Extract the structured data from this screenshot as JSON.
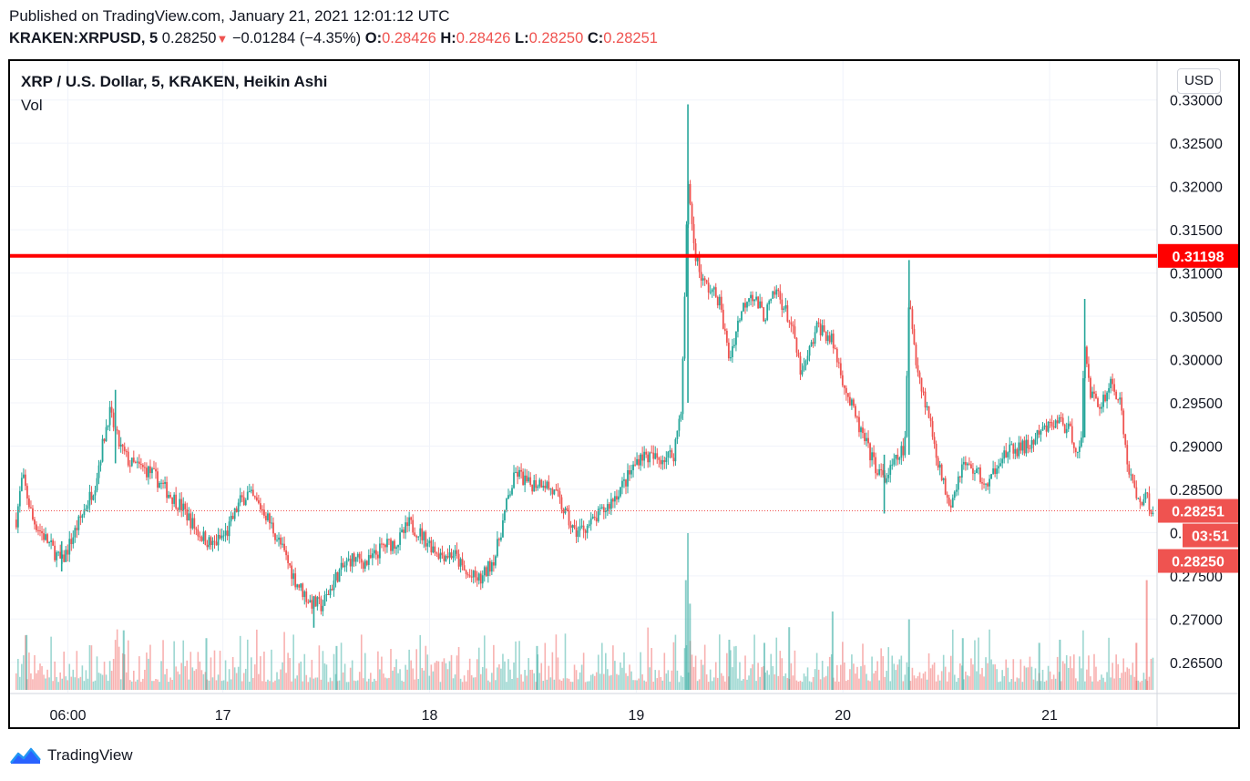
{
  "header": {
    "published": "Published on TradingView.com, January 21, 2021 12:01:12 UTC",
    "symbol": "KRAKEN:XRPUSD, 5",
    "last": "0.28250",
    "change_arrow": "▼",
    "change": "−0.01284 (−4.35%)",
    "o_label": "O:",
    "o_value": "0.28426",
    "h_label": "H:",
    "h_value": "0.28426",
    "l_label": "L:",
    "l_value": "0.28250",
    "c_label": "C:",
    "c_value": "0.28251"
  },
  "legend": {
    "title": "XRP / U.S. Dollar, 5, KRAKEN, Heikin Ashi",
    "volume": "Vol"
  },
  "currency_button": "USD",
  "footer": {
    "brand": "TradingView"
  },
  "colors": {
    "up": "#26a69a",
    "down": "#ef5350",
    "level": "#ff0000",
    "grid": "#f0f3fa"
  },
  "chart_data": {
    "type": "candlestick",
    "style": "Heikin Ashi",
    "title": "XRP / U.S. Dollar, 5, KRAKEN, Heikin Ashi",
    "y_ticks": [
      "0.33000",
      "0.32500",
      "0.32000",
      "0.31500",
      "0.31000",
      "0.30500",
      "0.30000",
      "0.29500",
      "0.29000",
      "0.28500",
      "0.28000",
      "0.27500",
      "0.27000",
      "0.26500"
    ],
    "ylim": [
      0.2615,
      0.3345
    ],
    "x_ticks": [
      {
        "label": "06:00",
        "x": 0.25
      },
      {
        "label": "17",
        "x": 1.0
      },
      {
        "label": "18",
        "x": 2.0
      },
      {
        "label": "19",
        "x": 3.0
      },
      {
        "label": "20",
        "x": 4.0
      },
      {
        "label": "21",
        "x": 5.0
      }
    ],
    "xlim": [
      -0.03,
      5.52
    ],
    "horizontal_line": {
      "value": 0.31198,
      "label": "0.31198"
    },
    "current_price": {
      "value": 0.28251,
      "label": "0.28251",
      "countdown": "03:51"
    },
    "last_close_label": "0.28250",
    "price_path": [
      [
        0.0,
        0.2815
      ],
      [
        0.03,
        0.2865
      ],
      [
        0.08,
        0.2815
      ],
      [
        0.15,
        0.279
      ],
      [
        0.22,
        0.2765
      ],
      [
        0.3,
        0.281
      ],
      [
        0.38,
        0.2855
      ],
      [
        0.45,
        0.294
      ],
      [
        0.5,
        0.29
      ],
      [
        0.55,
        0.288
      ],
      [
        0.65,
        0.287
      ],
      [
        0.72,
        0.285
      ],
      [
        0.8,
        0.283
      ],
      [
        0.88,
        0.28
      ],
      [
        0.95,
        0.2785
      ],
      [
        1.02,
        0.28
      ],
      [
        1.08,
        0.2835
      ],
      [
        1.12,
        0.2845
      ],
      [
        1.2,
        0.2825
      ],
      [
        1.28,
        0.2785
      ],
      [
        1.35,
        0.2745
      ],
      [
        1.42,
        0.272
      ],
      [
        1.48,
        0.2715
      ],
      [
        1.55,
        0.275
      ],
      [
        1.62,
        0.277
      ],
      [
        1.7,
        0.2765
      ],
      [
        1.78,
        0.2785
      ],
      [
        1.85,
        0.279
      ],
      [
        1.9,
        0.281
      ],
      [
        1.95,
        0.28
      ],
      [
        2.05,
        0.2775
      ],
      [
        2.12,
        0.2775
      ],
      [
        2.18,
        0.275
      ],
      [
        2.25,
        0.2745
      ],
      [
        2.32,
        0.2775
      ],
      [
        2.38,
        0.284
      ],
      [
        2.42,
        0.287
      ],
      [
        2.48,
        0.2855
      ],
      [
        2.55,
        0.286
      ],
      [
        2.62,
        0.284
      ],
      [
        2.7,
        0.28
      ],
      [
        2.78,
        0.281
      ],
      [
        2.86,
        0.283
      ],
      [
        2.95,
        0.286
      ],
      [
        3.02,
        0.289
      ],
      [
        3.1,
        0.2885
      ],
      [
        3.18,
        0.289
      ],
      [
        3.22,
        0.295
      ],
      [
        3.25,
        0.321
      ],
      [
        3.28,
        0.313
      ],
      [
        3.32,
        0.309
      ],
      [
        3.4,
        0.307
      ],
      [
        3.45,
        0.3
      ],
      [
        3.5,
        0.305
      ],
      [
        3.55,
        0.308
      ],
      [
        3.62,
        0.305
      ],
      [
        3.68,
        0.308
      ],
      [
        3.75,
        0.304
      ],
      [
        3.8,
        0.298
      ],
      [
        3.88,
        0.304
      ],
      [
        3.95,
        0.302
      ],
      [
        4.02,
        0.296
      ],
      [
        4.08,
        0.292
      ],
      [
        4.15,
        0.288
      ],
      [
        4.2,
        0.286
      ],
      [
        4.25,
        0.288
      ],
      [
        4.3,
        0.29
      ],
      [
        4.32,
        0.307
      ],
      [
        4.36,
        0.299
      ],
      [
        4.42,
        0.293
      ],
      [
        4.48,
        0.286
      ],
      [
        4.52,
        0.2835
      ],
      [
        4.58,
        0.288
      ],
      [
        4.65,
        0.287
      ],
      [
        4.7,
        0.285
      ],
      [
        4.75,
        0.2885
      ],
      [
        4.82,
        0.2895
      ],
      [
        4.9,
        0.29
      ],
      [
        4.98,
        0.292
      ],
      [
        5.05,
        0.293
      ],
      [
        5.1,
        0.2915
      ],
      [
        5.15,
        0.289
      ],
      [
        5.17,
        0.302
      ],
      [
        5.2,
        0.296
      ],
      [
        5.24,
        0.2945
      ],
      [
        5.3,
        0.2975
      ],
      [
        5.34,
        0.295
      ],
      [
        5.38,
        0.2875
      ],
      [
        5.42,
        0.284
      ],
      [
        5.47,
        0.284
      ],
      [
        5.5,
        0.2825
      ]
    ],
    "spikes": [
      {
        "x": 3.25,
        "high": 0.3295,
        "low": 0.295
      },
      {
        "x": 4.32,
        "high": 0.3115,
        "low": 0.289
      },
      {
        "x": 5.17,
        "high": 0.307,
        "low": 0.291
      },
      {
        "x": 0.48,
        "high": 0.2965,
        "low": 0.288
      },
      {
        "x": 1.44,
        "high": 0.2715,
        "low": 0.269
      },
      {
        "x": 0.22,
        "high": 0.279,
        "low": 0.2755
      },
      {
        "x": 4.2,
        "high": 0.289,
        "low": 0.2822
      }
    ],
    "volume": {
      "typical": 0.2,
      "spikes": [
        {
          "x": 3.25,
          "v": 1.0
        },
        {
          "x": 3.24,
          "v": 0.7
        },
        {
          "x": 3.26,
          "v": 0.55
        },
        {
          "x": 4.32,
          "v": 0.45
        },
        {
          "x": 3.95,
          "v": 0.5
        },
        {
          "x": 5.47,
          "v": 0.7
        },
        {
          "x": 5.42,
          "v": 0.3
        },
        {
          "x": 0.52,
          "v": 0.38
        },
        {
          "x": 0.05,
          "v": 0.35
        },
        {
          "x": 0.92,
          "v": 0.33
        },
        {
          "x": 3.74,
          "v": 0.4
        },
        {
          "x": 3.45,
          "v": 0.32
        },
        {
          "x": 4.58,
          "v": 0.33
        },
        {
          "x": 4.95,
          "v": 0.3
        },
        {
          "x": 1.55,
          "v": 0.28
        },
        {
          "x": 2.52,
          "v": 0.28
        },
        {
          "x": 5.05,
          "v": 0.32
        },
        {
          "x": 3.62,
          "v": 0.3
        }
      ]
    }
  }
}
